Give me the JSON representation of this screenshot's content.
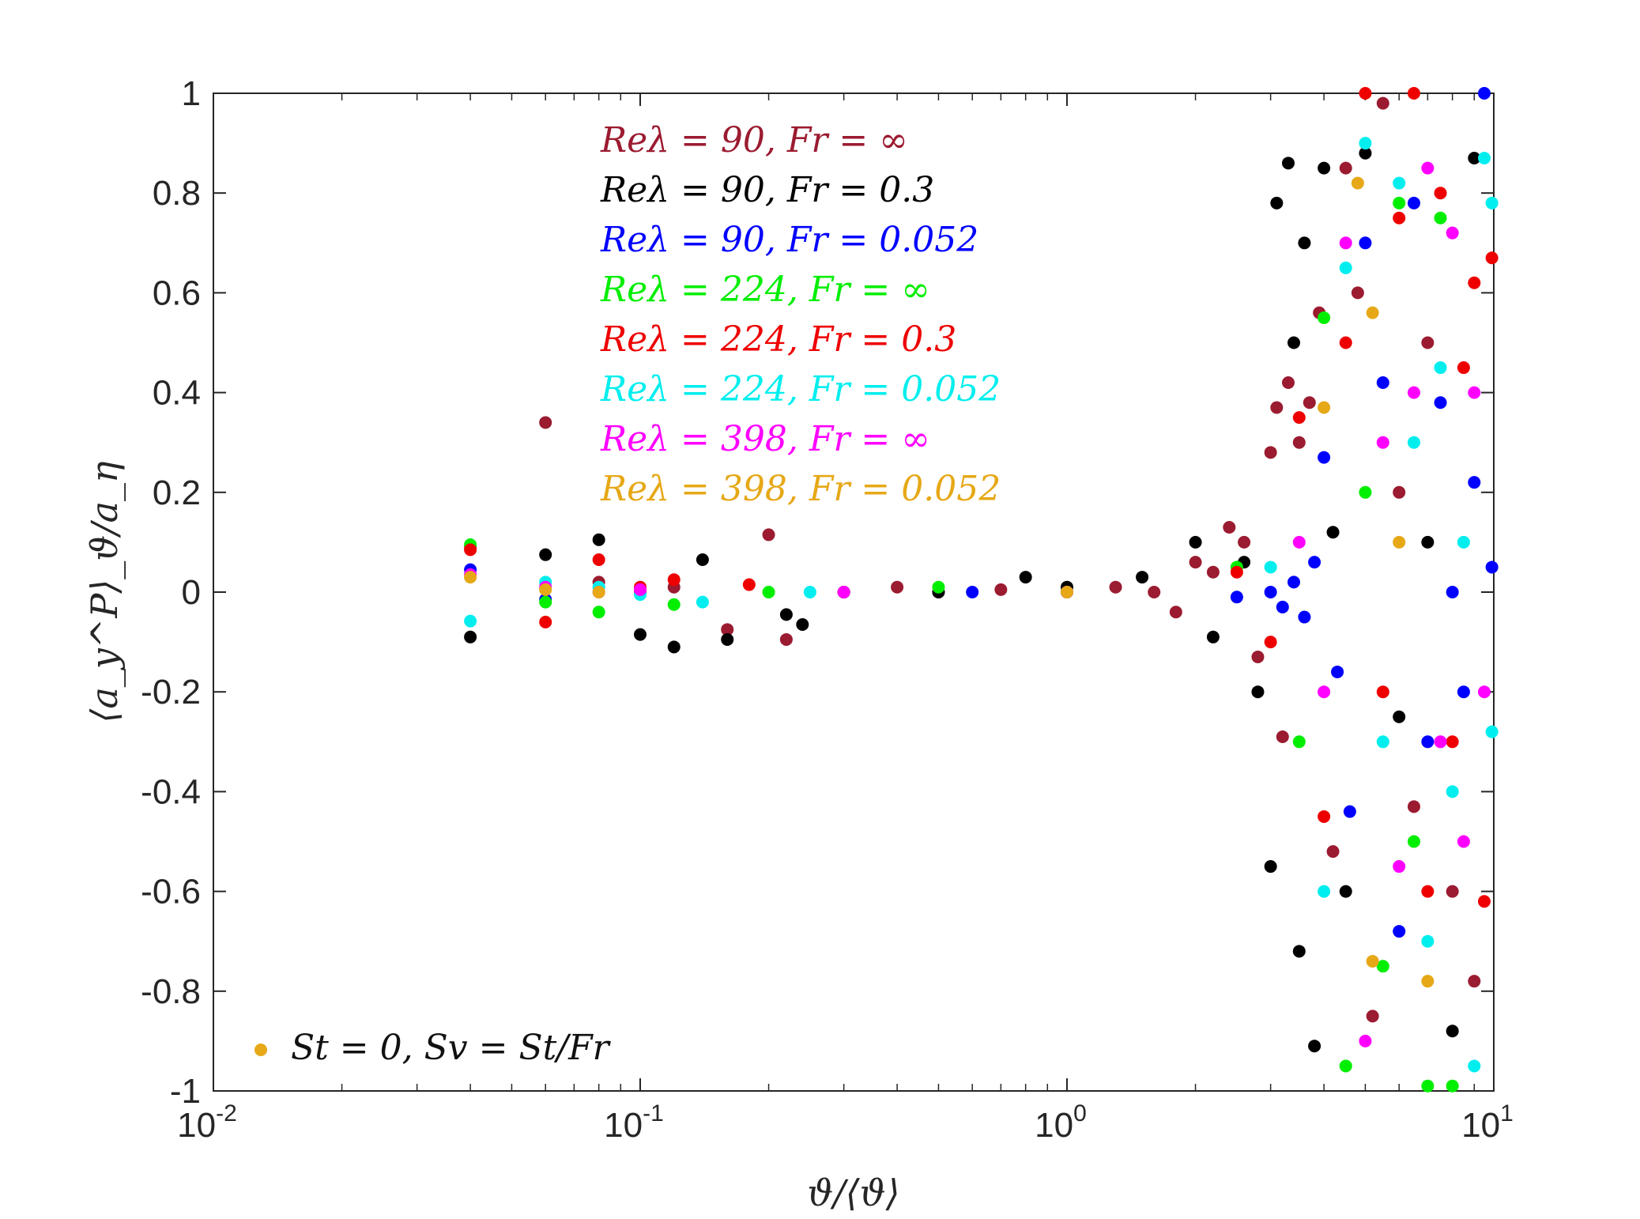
{
  "chart_data": {
    "type": "scatter",
    "x_scale": "log",
    "xlim": [
      0.01,
      10
    ],
    "ylim": [
      -1,
      1
    ],
    "grid": false,
    "xlabel": "ϑ/⟨ϑ⟩",
    "ylabel": "⟨a_y^P⟩_ϑ/a_η",
    "x_tick_labels": [
      {
        "base": "10",
        "exp": "-2"
      },
      {
        "base": "10",
        "exp": "-1"
      },
      {
        "base": "10",
        "exp": "0"
      },
      {
        "base": "10",
        "exp": "1"
      }
    ],
    "y_tick_values": [
      1,
      0.8,
      0.6,
      0.4,
      0.2,
      0,
      -0.2,
      -0.4,
      -0.6,
      -0.8,
      -1
    ],
    "y_tick_labels": [
      "1",
      "0.8",
      "0.6",
      "0.4",
      "0.2",
      "0",
      "-0.2",
      "-0.4",
      "-0.6",
      "-0.8",
      "-1"
    ],
    "legend": {
      "placement": "top-center",
      "entries": [
        {
          "label": "Reλ = 90, Fr = ∞",
          "color": "#9b1b30"
        },
        {
          "label": "Reλ = 90, Fr = 0.3",
          "color": "#000000"
        },
        {
          "label": "Reλ = 90, Fr = 0.052",
          "color": "#0000ff"
        },
        {
          "label": "Reλ = 224, Fr = ∞",
          "color": "#00ee00"
        },
        {
          "label": "Reλ = 224, Fr = 0.3",
          "color": "#ee0000"
        },
        {
          "label": "Reλ = 224, Fr = 0.052",
          "color": "#00eeee"
        },
        {
          "label": "Reλ = 398, Fr = ∞",
          "color": "#ff00ff"
        },
        {
          "label": "Reλ = 398, Fr = 0.052",
          "color": "#e6a817"
        }
      ]
    },
    "annotation": {
      "label": "St = 0, Sv = St/Fr",
      "marker_color": "#e6a817",
      "placement": "bottom-left"
    },
    "series": [
      {
        "name": "Reλ = 90, Fr = ∞",
        "color": "#9b1b30",
        "points": [
          [
            0.04,
            0.09
          ],
          [
            0.06,
            0.34
          ],
          [
            0.08,
            0.02
          ],
          [
            0.1,
            0.0
          ],
          [
            0.12,
            0.01
          ],
          [
            0.16,
            -0.075
          ],
          [
            0.2,
            0.115
          ],
          [
            0.22,
            -0.095
          ],
          [
            0.3,
            0.0
          ],
          [
            0.4,
            0.01
          ],
          [
            0.5,
            0.0
          ],
          [
            0.7,
            0.005
          ],
          [
            1.0,
            0.0
          ],
          [
            1.3,
            0.01
          ],
          [
            1.6,
            0.0
          ],
          [
            1.8,
            -0.04
          ],
          [
            2.0,
            0.06
          ],
          [
            2.2,
            0.04
          ],
          [
            2.4,
            0.13
          ],
          [
            2.6,
            0.1
          ],
          [
            2.8,
            -0.13
          ],
          [
            3.0,
            0.28
          ],
          [
            3.1,
            0.37
          ],
          [
            3.2,
            -0.29
          ],
          [
            3.3,
            0.42
          ],
          [
            3.5,
            0.3
          ],
          [
            3.7,
            0.38
          ],
          [
            3.9,
            0.56
          ],
          [
            4.2,
            -0.52
          ],
          [
            4.5,
            0.85
          ],
          [
            4.8,
            0.6
          ],
          [
            5.2,
            -0.85
          ],
          [
            5.5,
            0.98
          ],
          [
            6.0,
            0.2
          ],
          [
            6.5,
            -0.43
          ],
          [
            7.0,
            0.5
          ],
          [
            8.0,
            -0.6
          ],
          [
            9.0,
            -0.78
          ]
        ]
      },
      {
        "name": "Reλ = 90, Fr = 0.3",
        "color": "#000000",
        "points": [
          [
            0.04,
            -0.09
          ],
          [
            0.06,
            0.075
          ],
          [
            0.08,
            0.105
          ],
          [
            0.1,
            -0.085
          ],
          [
            0.12,
            -0.11
          ],
          [
            0.14,
            0.065
          ],
          [
            0.16,
            -0.095
          ],
          [
            0.22,
            -0.045
          ],
          [
            0.24,
            -0.065
          ],
          [
            0.3,
            0.0
          ],
          [
            0.5,
            0.0
          ],
          [
            0.8,
            0.03
          ],
          [
            1.0,
            0.01
          ],
          [
            1.5,
            0.03
          ],
          [
            2.0,
            0.1
          ],
          [
            2.2,
            -0.09
          ],
          [
            2.6,
            0.06
          ],
          [
            2.8,
            -0.2
          ],
          [
            3.0,
            -0.55
          ],
          [
            3.1,
            0.78
          ],
          [
            3.3,
            0.86
          ],
          [
            3.4,
            0.5
          ],
          [
            3.5,
            -0.72
          ],
          [
            3.6,
            0.7
          ],
          [
            3.8,
            -0.91
          ],
          [
            4.0,
            0.85
          ],
          [
            4.2,
            0.12
          ],
          [
            4.5,
            -0.6
          ],
          [
            5.0,
            0.88
          ],
          [
            6.0,
            -0.25
          ],
          [
            7.0,
            0.1
          ],
          [
            8.0,
            -0.88
          ],
          [
            9.0,
            0.87
          ]
        ]
      },
      {
        "name": "Reλ = 90, Fr = 0.052",
        "color": "#0000ff",
        "points": [
          [
            0.04,
            0.045
          ],
          [
            0.06,
            -0.015
          ],
          [
            0.3,
            0.0
          ],
          [
            0.6,
            0.0
          ],
          [
            1.0,
            0.0
          ],
          [
            2.5,
            -0.01
          ],
          [
            3.0,
            0.0
          ],
          [
            3.2,
            -0.03
          ],
          [
            3.4,
            0.02
          ],
          [
            3.6,
            -0.05
          ],
          [
            3.8,
            0.06
          ],
          [
            4.0,
            0.27
          ],
          [
            4.3,
            -0.16
          ],
          [
            4.6,
            -0.44
          ],
          [
            5.0,
            0.7
          ],
          [
            5.5,
            0.42
          ],
          [
            6.0,
            -0.68
          ],
          [
            6.5,
            0.78
          ],
          [
            7.0,
            -0.3
          ],
          [
            7.5,
            0.38
          ],
          [
            8.0,
            0.0
          ],
          [
            8.5,
            -0.2
          ],
          [
            9.0,
            0.22
          ],
          [
            9.5,
            1.0
          ],
          [
            9.9,
            0.05
          ]
        ]
      },
      {
        "name": "Reλ = 224, Fr = ∞",
        "color": "#00ee00",
        "points": [
          [
            0.04,
            0.095
          ],
          [
            0.06,
            -0.02
          ],
          [
            0.08,
            -0.04
          ],
          [
            0.12,
            -0.025
          ],
          [
            0.2,
            0.0
          ],
          [
            0.5,
            0.01
          ],
          [
            1.0,
            0.0
          ],
          [
            2.5,
            0.05
          ],
          [
            3.5,
            -0.3
          ],
          [
            4.0,
            0.55
          ],
          [
            4.5,
            -0.95
          ],
          [
            5.0,
            0.2
          ],
          [
            5.5,
            -0.75
          ],
          [
            6.0,
            0.78
          ],
          [
            6.5,
            -0.5
          ],
          [
            7.0,
            -0.99
          ],
          [
            7.5,
            0.75
          ],
          [
            8.0,
            -0.99
          ]
        ]
      },
      {
        "name": "Reλ = 224, Fr = 0.3",
        "color": "#ee0000",
        "points": [
          [
            0.04,
            0.085
          ],
          [
            0.06,
            -0.06
          ],
          [
            0.08,
            0.065
          ],
          [
            0.1,
            0.01
          ],
          [
            0.12,
            0.025
          ],
          [
            0.18,
            0.015
          ],
          [
            0.3,
            0.0
          ],
          [
            1.0,
            0.0
          ],
          [
            2.5,
            0.04
          ],
          [
            3.0,
            -0.1
          ],
          [
            3.5,
            0.35
          ],
          [
            4.0,
            -0.45
          ],
          [
            4.5,
            0.5
          ],
          [
            5.0,
            1.0
          ],
          [
            5.5,
            -0.2
          ],
          [
            6.0,
            0.75
          ],
          [
            6.5,
            1.0
          ],
          [
            7.0,
            -0.6
          ],
          [
            7.5,
            0.8
          ],
          [
            8.0,
            -0.3
          ],
          [
            8.5,
            0.45
          ],
          [
            9.0,
            0.62
          ],
          [
            9.5,
            -0.62
          ],
          [
            9.9,
            0.67
          ]
        ]
      },
      {
        "name": "Reλ = 224, Fr = 0.052",
        "color": "#00eeee",
        "points": [
          [
            0.04,
            -0.058
          ],
          [
            0.06,
            0.02
          ],
          [
            0.08,
            0.01
          ],
          [
            0.1,
            -0.005
          ],
          [
            0.14,
            -0.02
          ],
          [
            0.25,
            0.0
          ],
          [
            1.0,
            0.0
          ],
          [
            3.0,
            0.05
          ],
          [
            4.0,
            -0.6
          ],
          [
            4.5,
            0.65
          ],
          [
            5.0,
            0.9
          ],
          [
            5.5,
            -0.3
          ],
          [
            6.0,
            0.82
          ],
          [
            6.5,
            0.3
          ],
          [
            7.0,
            -0.7
          ],
          [
            7.5,
            0.45
          ],
          [
            8.0,
            -0.4
          ],
          [
            8.5,
            0.1
          ],
          [
            9.0,
            -0.95
          ],
          [
            9.5,
            0.87
          ],
          [
            9.9,
            -0.28
          ],
          [
            9.9,
            0.78
          ]
        ]
      },
      {
        "name": "Reλ = 398, Fr = ∞",
        "color": "#ff00ff",
        "points": [
          [
            0.04,
            0.035
          ],
          [
            0.06,
            0.01
          ],
          [
            0.08,
            0.0
          ],
          [
            0.1,
            0.005
          ],
          [
            0.3,
            0.0
          ],
          [
            1.0,
            0.0
          ],
          [
            3.5,
            0.1
          ],
          [
            4.0,
            -0.2
          ],
          [
            4.5,
            0.7
          ],
          [
            5.0,
            -0.9
          ],
          [
            5.5,
            0.3
          ],
          [
            6.0,
            -0.55
          ],
          [
            6.5,
            0.4
          ],
          [
            7.0,
            0.85
          ],
          [
            7.5,
            -0.3
          ],
          [
            8.0,
            0.72
          ],
          [
            8.5,
            -0.5
          ],
          [
            9.0,
            0.4
          ],
          [
            9.5,
            -0.2
          ]
        ]
      },
      {
        "name": "Reλ = 398, Fr = 0.052",
        "color": "#e6a817",
        "points": [
          [
            0.04,
            0.03
          ],
          [
            0.06,
            0.005
          ],
          [
            0.08,
            0.0
          ],
          [
            1.0,
            0.0
          ],
          [
            4.0,
            0.37
          ],
          [
            4.8,
            0.82
          ],
          [
            5.2,
            0.56
          ],
          [
            5.2,
            -0.74
          ],
          [
            6.0,
            0.1
          ],
          [
            7.0,
            -0.78
          ]
        ]
      }
    ]
  }
}
